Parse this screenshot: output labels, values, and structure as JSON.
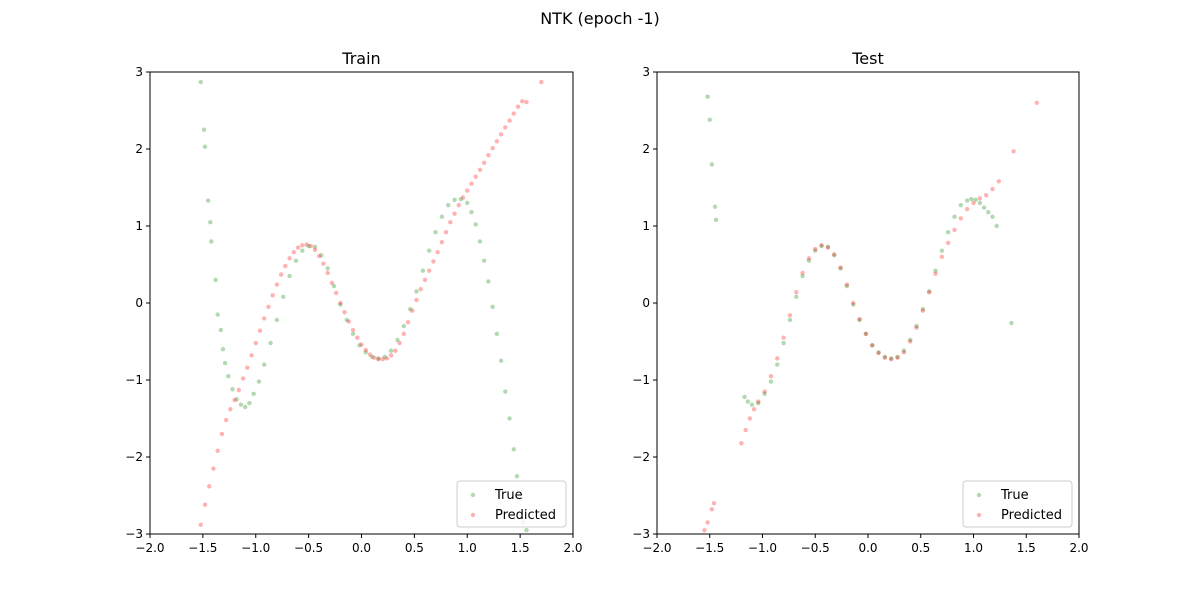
{
  "figure": {
    "title": "NTK (epoch -1)"
  },
  "chart_data": [
    {
      "type": "scatter",
      "title": "Train",
      "xlabel": "",
      "ylabel": "",
      "xlim": [
        -2.0,
        2.0
      ],
      "ylim": [
        -3,
        3
      ],
      "xticks": [
        "−2.0",
        "−1.5",
        "−1.0",
        "−0.5",
        "0.0",
        "0.5",
        "1.0",
        "1.5",
        "2.0"
      ],
      "yticks": [
        "−3",
        "−2",
        "−1",
        "0",
        "1",
        "2",
        "3"
      ],
      "grid": false,
      "legend_position": "lower right",
      "series": [
        {
          "name": "True",
          "color": "#008000",
          "alpha": 0.3,
          "x": [
            -1.52,
            -1.49,
            -1.48,
            -1.45,
            -1.43,
            -1.42,
            -1.38,
            -1.36,
            -1.33,
            -1.31,
            -1.29,
            -1.26,
            -1.22,
            -1.18,
            -1.14,
            -1.1,
            -1.06,
            -1.02,
            -0.97,
            -0.92,
            -0.86,
            -0.8,
            -0.74,
            -0.68,
            -0.62,
            -0.56,
            -0.5,
            -0.44,
            -0.38,
            -0.32,
            -0.26,
            -0.2,
            -0.14,
            -0.08,
            -0.02,
            0.04,
            0.1,
            0.16,
            0.22,
            0.28,
            0.34,
            0.4,
            0.46,
            0.52,
            0.58,
            0.64,
            0.7,
            0.76,
            0.82,
            0.88,
            0.94,
            1.0,
            1.04,
            1.08,
            1.12,
            1.16,
            1.2,
            1.24,
            1.28,
            1.32,
            1.36,
            1.4,
            1.44,
            1.47,
            1.5,
            1.53,
            1.56
          ],
          "y": [
            2.87,
            2.25,
            2.03,
            1.33,
            1.05,
            0.8,
            0.3,
            -0.15,
            -0.35,
            -0.6,
            -0.78,
            -0.95,
            -1.12,
            -1.25,
            -1.32,
            -1.35,
            -1.3,
            -1.18,
            -1.02,
            -0.8,
            -0.52,
            -0.22,
            0.08,
            0.35,
            0.55,
            0.68,
            0.74,
            0.73,
            0.62,
            0.45,
            0.22,
            -0.02,
            -0.22,
            -0.4,
            -0.55,
            -0.64,
            -0.7,
            -0.72,
            -0.7,
            -0.62,
            -0.48,
            -0.3,
            -0.08,
            0.15,
            0.42,
            0.68,
            0.92,
            1.12,
            1.27,
            1.34,
            1.35,
            1.3,
            1.18,
            1.02,
            0.8,
            0.55,
            0.28,
            -0.05,
            -0.4,
            -0.75,
            -1.15,
            -1.5,
            -1.9,
            -2.25,
            -2.55,
            -2.85,
            -2.95
          ]
        },
        {
          "name": "Predicted",
          "color": "#ff0000",
          "alpha": 0.3,
          "x": [
            -1.55,
            -1.52,
            -1.48,
            -1.44,
            -1.4,
            -1.36,
            -1.32,
            -1.28,
            -1.24,
            -1.2,
            -1.16,
            -1.12,
            -1.08,
            -1.04,
            -1.0,
            -0.96,
            -0.92,
            -0.88,
            -0.84,
            -0.8,
            -0.76,
            -0.72,
            -0.68,
            -0.64,
            -0.6,
            -0.56,
            -0.52,
            -0.48,
            -0.44,
            -0.4,
            -0.36,
            -0.32,
            -0.28,
            -0.24,
            -0.2,
            -0.16,
            -0.12,
            -0.08,
            -0.04,
            0.0,
            0.04,
            0.08,
            0.12,
            0.16,
            0.2,
            0.24,
            0.28,
            0.32,
            0.36,
            0.4,
            0.44,
            0.48,
            0.52,
            0.56,
            0.6,
            0.64,
            0.68,
            0.72,
            0.76,
            0.8,
            0.84,
            0.88,
            0.92,
            0.96,
            1.0,
            1.04,
            1.08,
            1.12,
            1.16,
            1.2,
            1.24,
            1.28,
            1.32,
            1.36,
            1.4,
            1.44,
            1.48,
            1.52,
            1.56,
            1.7
          ],
          "y": [
            -3.05,
            -2.88,
            -2.62,
            -2.38,
            -2.15,
            -1.92,
            -1.7,
            -1.52,
            -1.38,
            -1.26,
            -1.13,
            -0.98,
            -0.84,
            -0.68,
            -0.52,
            -0.36,
            -0.2,
            -0.05,
            0.1,
            0.24,
            0.37,
            0.48,
            0.58,
            0.66,
            0.72,
            0.75,
            0.76,
            0.74,
            0.69,
            0.61,
            0.51,
            0.39,
            0.26,
            0.13,
            0.0,
            -0.12,
            -0.24,
            -0.35,
            -0.45,
            -0.54,
            -0.61,
            -0.67,
            -0.71,
            -0.73,
            -0.73,
            -0.72,
            -0.68,
            -0.62,
            -0.52,
            -0.4,
            -0.25,
            -0.1,
            0.04,
            0.18,
            0.3,
            0.42,
            0.54,
            0.66,
            0.79,
            0.92,
            1.05,
            1.16,
            1.27,
            1.37,
            1.46,
            1.55,
            1.64,
            1.73,
            1.82,
            1.92,
            2.01,
            2.1,
            2.19,
            2.28,
            2.37,
            2.46,
            2.55,
            2.62,
            2.61,
            2.87
          ]
        }
      ]
    },
    {
      "type": "scatter",
      "title": "Test",
      "xlabel": "",
      "ylabel": "",
      "xlim": [
        -2.0,
        2.0
      ],
      "ylim": [
        -3,
        3
      ],
      "xticks": [
        "−2.0",
        "−1.5",
        "−1.0",
        "−0.5",
        "0.0",
        "0.5",
        "1.0",
        "1.5",
        "2.0"
      ],
      "yticks": [
        "−3",
        "−2",
        "−1",
        "0",
        "1",
        "2",
        "3"
      ],
      "grid": false,
      "legend_position": "lower right",
      "series": [
        {
          "name": "True",
          "color": "#008000",
          "alpha": 0.3,
          "x": [
            -1.52,
            -1.5,
            -1.48,
            -1.45,
            -1.44,
            -1.17,
            -1.14,
            -1.1,
            -1.04,
            -0.98,
            -0.92,
            -0.86,
            -0.8,
            -0.74,
            -0.68,
            -0.62,
            -0.56,
            -0.5,
            -0.44,
            -0.38,
            -0.32,
            -0.26,
            -0.2,
            -0.14,
            -0.08,
            -0.02,
            0.04,
            0.1,
            0.16,
            0.22,
            0.28,
            0.34,
            0.4,
            0.46,
            0.52,
            0.58,
            0.64,
            0.7,
            0.76,
            0.82,
            0.88,
            0.94,
            0.98,
            1.02,
            1.06,
            1.1,
            1.14,
            1.18,
            1.22,
            1.36
          ],
          "y": [
            2.68,
            2.38,
            1.8,
            1.25,
            1.08,
            -1.22,
            -1.28,
            -1.32,
            -1.3,
            -1.18,
            -1.02,
            -0.8,
            -0.52,
            -0.22,
            0.08,
            0.35,
            0.55,
            0.68,
            0.74,
            0.73,
            0.62,
            0.45,
            0.22,
            -0.02,
            -0.22,
            -0.4,
            -0.55,
            -0.64,
            -0.7,
            -0.72,
            -0.7,
            -0.62,
            -0.48,
            -0.3,
            -0.08,
            0.15,
            0.42,
            0.68,
            0.92,
            1.12,
            1.27,
            1.33,
            1.35,
            1.34,
            1.3,
            1.24,
            1.18,
            1.12,
            1.0,
            -0.26
          ]
        },
        {
          "name": "Predicted",
          "color": "#ff0000",
          "alpha": 0.3,
          "x": [
            -1.55,
            -1.52,
            -1.48,
            -1.46,
            -1.2,
            -1.16,
            -1.12,
            -1.08,
            -1.04,
            -0.98,
            -0.92,
            -0.86,
            -0.8,
            -0.74,
            -0.68,
            -0.62,
            -0.56,
            -0.5,
            -0.44,
            -0.38,
            -0.32,
            -0.26,
            -0.2,
            -0.14,
            -0.08,
            -0.02,
            0.04,
            0.1,
            0.16,
            0.22,
            0.28,
            0.34,
            0.4,
            0.46,
            0.52,
            0.58,
            0.64,
            0.7,
            0.76,
            0.82,
            0.88,
            0.94,
            1.0,
            1.06,
            1.12,
            1.18,
            1.24,
            1.38,
            1.6
          ],
          "y": [
            -2.95,
            -2.85,
            -2.68,
            -2.6,
            -1.82,
            -1.65,
            -1.5,
            -1.38,
            -1.28,
            -1.15,
            -0.95,
            -0.72,
            -0.45,
            -0.16,
            0.14,
            0.39,
            0.58,
            0.7,
            0.75,
            0.72,
            0.63,
            0.46,
            0.24,
            0.0,
            -0.21,
            -0.4,
            -0.55,
            -0.65,
            -0.71,
            -0.73,
            -0.71,
            -0.64,
            -0.5,
            -0.32,
            -0.1,
            0.14,
            0.38,
            0.6,
            0.78,
            0.95,
            1.1,
            1.22,
            1.3,
            1.36,
            1.4,
            1.48,
            1.58,
            1.97,
            2.6
          ]
        }
      ]
    }
  ]
}
